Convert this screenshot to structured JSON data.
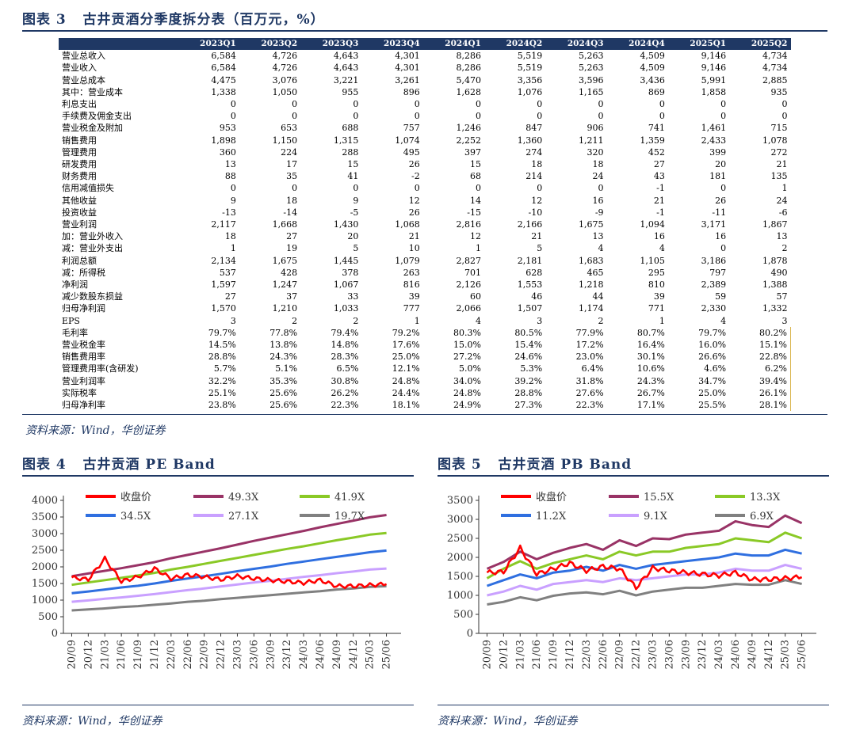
{
  "table_fig": {
    "label": "图表 3",
    "title": "古井贡酒分季度拆分表（百万元，%）",
    "columns": [
      "2023Q1",
      "2023Q2",
      "2023Q3",
      "2023Q4",
      "2024Q1",
      "2024Q2",
      "2024Q3",
      "2024Q4",
      "2025Q1",
      "2025Q2"
    ],
    "rows": [
      {
        "label": "营业总收入",
        "values": [
          "6,584",
          "4,726",
          "4,643",
          "4,301",
          "8,286",
          "5,519",
          "5,263",
          "4,509",
          "9,146",
          "4,734"
        ]
      },
      {
        "label": "营业收入",
        "values": [
          "6,584",
          "4,726",
          "4,643",
          "4,301",
          "8,286",
          "5,519",
          "5,263",
          "4,509",
          "9,146",
          "4,734"
        ]
      },
      {
        "label": "营业总成本",
        "values": [
          "4,475",
          "3,076",
          "3,221",
          "3,261",
          "5,470",
          "3,356",
          "3,596",
          "3,436",
          "5,991",
          "2,885"
        ]
      },
      {
        "label": "其中：营业成本",
        "values": [
          "1,338",
          "1,050",
          "955",
          "896",
          "1,628",
          "1,076",
          "1,165",
          "869",
          "1,858",
          "935"
        ]
      },
      {
        "label": "利息支出",
        "values": [
          "0",
          "0",
          "0",
          "0",
          "0",
          "0",
          "0",
          "0",
          "0",
          "0"
        ]
      },
      {
        "label": "手续费及佣金支出",
        "values": [
          "0",
          "0",
          "0",
          "0",
          "0",
          "0",
          "0",
          "0",
          "0",
          "0"
        ]
      },
      {
        "label": "营业税金及附加",
        "values": [
          "953",
          "653",
          "688",
          "757",
          "1,246",
          "847",
          "906",
          "741",
          "1,461",
          "715"
        ]
      },
      {
        "label": "销售费用",
        "values": [
          "1,898",
          "1,150",
          "1,315",
          "1,074",
          "2,252",
          "1,360",
          "1,211",
          "1,359",
          "2,433",
          "1,078"
        ]
      },
      {
        "label": "管理费用",
        "values": [
          "360",
          "224",
          "288",
          "495",
          "397",
          "274",
          "320",
          "452",
          "399",
          "272"
        ]
      },
      {
        "label": "研发费用",
        "values": [
          "13",
          "17",
          "15",
          "26",
          "15",
          "18",
          "18",
          "27",
          "20",
          "21"
        ]
      },
      {
        "label": "财务费用",
        "values": [
          "88",
          "35",
          "41",
          "-2",
          "68",
          "214",
          "24",
          "43",
          "181",
          "135"
        ]
      },
      {
        "label": "信用减值损失",
        "values": [
          "0",
          "0",
          "0",
          "0",
          "0",
          "0",
          "0",
          "-1",
          "0",
          "1"
        ]
      },
      {
        "label": "其他收益",
        "values": [
          "9",
          "18",
          "9",
          "12",
          "14",
          "12",
          "16",
          "21",
          "26",
          "24"
        ]
      },
      {
        "label": "投资收益",
        "values": [
          "-13",
          "-14",
          "-5",
          "26",
          "-15",
          "-10",
          "-9",
          "-1",
          "-11",
          "-6"
        ]
      },
      {
        "label": "营业利润",
        "values": [
          "2,117",
          "1,668",
          "1,430",
          "1,068",
          "2,816",
          "2,166",
          "1,675",
          "1,094",
          "3,171",
          "1,867"
        ]
      },
      {
        "label": "加：营业外收入",
        "values": [
          "18",
          "27",
          "20",
          "21",
          "12",
          "21",
          "13",
          "16",
          "16",
          "13"
        ]
      },
      {
        "label": "减：营业外支出",
        "values": [
          "1",
          "19",
          "5",
          "10",
          "1",
          "5",
          "4",
          "4",
          "0",
          "2"
        ]
      },
      {
        "label": "利润总额",
        "values": [
          "2,134",
          "1,675",
          "1,445",
          "1,079",
          "2,827",
          "2,181",
          "1,683",
          "1,105",
          "3,186",
          "1,878"
        ]
      },
      {
        "label": "减：所得税",
        "values": [
          "537",
          "428",
          "378",
          "263",
          "701",
          "628",
          "465",
          "295",
          "797",
          "490"
        ]
      },
      {
        "label": "净利润",
        "values": [
          "1,597",
          "1,247",
          "1,067",
          "816",
          "2,126",
          "1,553",
          "1,218",
          "810",
          "2,389",
          "1,388"
        ]
      },
      {
        "label": "减少数股东损益",
        "values": [
          "27",
          "37",
          "33",
          "39",
          "60",
          "46",
          "44",
          "39",
          "59",
          "57"
        ]
      },
      {
        "label": "归母净利润",
        "values": [
          "1,570",
          "1,210",
          "1,033",
          "777",
          "2,066",
          "1,507",
          "1,174",
          "771",
          "2,330",
          "1,332"
        ]
      },
      {
        "label": "EPS",
        "values": [
          "3",
          "2",
          "2",
          "1",
          "4",
          "3",
          "2",
          "1",
          "4",
          "3"
        ]
      },
      {
        "label": "毛利率",
        "values": [
          "79.7%",
          "77.8%",
          "79.4%",
          "79.2%",
          "80.3%",
          "80.5%",
          "77.9%",
          "80.7%",
          "79.7%",
          "80.2%"
        ]
      },
      {
        "label": "营业税金率",
        "values": [
          "14.5%",
          "13.8%",
          "14.8%",
          "17.6%",
          "15.0%",
          "15.4%",
          "17.2%",
          "16.4%",
          "16.0%",
          "15.1%"
        ]
      },
      {
        "label": "销售费用率",
        "values": [
          "28.8%",
          "24.3%",
          "28.3%",
          "25.0%",
          "27.2%",
          "24.6%",
          "23.0%",
          "30.1%",
          "26.6%",
          "22.8%"
        ]
      },
      {
        "label": "管理费用率(含研发)",
        "values": [
          "5.7%",
          "5.1%",
          "6.5%",
          "12.1%",
          "5.0%",
          "5.3%",
          "6.4%",
          "10.6%",
          "4.6%",
          "6.2%"
        ]
      },
      {
        "label": "营业利润率",
        "values": [
          "32.2%",
          "35.3%",
          "30.8%",
          "24.8%",
          "34.0%",
          "39.2%",
          "31.8%",
          "24.3%",
          "34.7%",
          "39.4%"
        ]
      },
      {
        "label": "实际税率",
        "values": [
          "25.1%",
          "25.6%",
          "26.2%",
          "24.4%",
          "24.8%",
          "28.8%",
          "27.6%",
          "26.7%",
          "25.0%",
          "26.1%"
        ]
      },
      {
        "label": "归母净利率",
        "values": [
          "23.8%",
          "25.6%",
          "22.3%",
          "18.1%",
          "24.9%",
          "27.3%",
          "22.3%",
          "17.1%",
          "25.5%",
          "28.1%"
        ]
      }
    ],
    "source": "资料来源：Wind，华创证券"
  },
  "pe_fig": {
    "label": "图表 4",
    "title": "古井贡酒 PE Band",
    "source": "资料来源：Wind，华创证券"
  },
  "pb_fig": {
    "label": "图表 5",
    "title": "古井贡酒 PB Band",
    "source": "资料来源：Wind，华创证券"
  },
  "chart_data": [
    {
      "type": "line",
      "title": "古井贡酒 PE Band",
      "x_ticks": [
        "20/09",
        "20/12",
        "21/03",
        "21/06",
        "21/09",
        "21/12",
        "22/03",
        "22/06",
        "22/09",
        "22/12",
        "23/03",
        "23/06",
        "23/09",
        "23/12",
        "24/03",
        "24/06",
        "24/09",
        "24/12",
        "25/03",
        "25/06"
      ],
      "ylim": [
        0,
        4000
      ],
      "y_ticks": [
        0,
        500,
        1000,
        1500,
        2000,
        2500,
        3000,
        3500,
        4000
      ],
      "legend_position": "top",
      "series": [
        {
          "name": "收盘价",
          "color": "#ff0000",
          "values": [
            1680,
            1620,
            2250,
            1560,
            1700,
            1950,
            1650,
            1760,
            1700,
            1620,
            1720,
            1650,
            1600,
            1560,
            1520,
            1600,
            1420,
            1420,
            1450,
            1480
          ]
        },
        {
          "name": "49.3X",
          "color": "#993366",
          "values": [
            1720,
            1800,
            1880,
            1960,
            2050,
            2140,
            2260,
            2360,
            2460,
            2560,
            2670,
            2780,
            2880,
            2980,
            3080,
            3190,
            3290,
            3390,
            3490,
            3560
          ]
        },
        {
          "name": "41.9X",
          "color": "#8ac926",
          "values": [
            1460,
            1530,
            1600,
            1670,
            1740,
            1820,
            1920,
            2000,
            2090,
            2180,
            2270,
            2360,
            2450,
            2540,
            2620,
            2710,
            2800,
            2880,
            2970,
            3020
          ]
        },
        {
          "name": "34.5X",
          "color": "#2f6fe0",
          "values": [
            1210,
            1260,
            1320,
            1380,
            1430,
            1500,
            1580,
            1650,
            1720,
            1790,
            1870,
            1940,
            2010,
            2090,
            2160,
            2230,
            2300,
            2370,
            2440,
            2490
          ]
        },
        {
          "name": "27.1X",
          "color": "#c9a0ff",
          "values": [
            950,
            990,
            1040,
            1080,
            1130,
            1180,
            1240,
            1300,
            1350,
            1410,
            1470,
            1530,
            1580,
            1640,
            1700,
            1750,
            1810,
            1860,
            1920,
            1950
          ]
        },
        {
          "name": "19.7X",
          "color": "#808080",
          "values": [
            690,
            720,
            750,
            790,
            820,
            860,
            900,
            950,
            980,
            1030,
            1070,
            1110,
            1150,
            1190,
            1230,
            1270,
            1320,
            1350,
            1400,
            1420
          ]
        }
      ]
    },
    {
      "type": "line",
      "title": "古井贡酒 PB Band",
      "x_ticks": [
        "20/09",
        "20/12",
        "21/03",
        "21/06",
        "21/09",
        "21/12",
        "22/03",
        "22/06",
        "22/09",
        "22/12",
        "23/03",
        "23/06",
        "23/09",
        "23/12",
        "24/03",
        "24/06",
        "24/09",
        "24/12",
        "25/03",
        "25/06"
      ],
      "ylim": [
        0,
        3500
      ],
      "y_ticks": [
        0,
        500,
        1000,
        1500,
        2000,
        2500,
        3000,
        3500
      ],
      "legend_position": "top",
      "series": [
        {
          "name": "收盘价",
          "color": "#ff0000",
          "values": [
            1600,
            1620,
            2250,
            1560,
            1700,
            1850,
            1650,
            1760,
            1700,
            1200,
            1720,
            1650,
            1600,
            1560,
            1520,
            1600,
            1420,
            1420,
            1450,
            1480
          ]
        },
        {
          "name": "15.5X",
          "color": "#993366",
          "values": [
            1700,
            1880,
            2150,
            1950,
            2120,
            2250,
            2350,
            2200,
            2450,
            2300,
            2500,
            2480,
            2600,
            2650,
            2700,
            2950,
            2850,
            2800,
            3100,
            2900
          ]
        },
        {
          "name": "13.3X",
          "color": "#8ac926",
          "values": [
            1450,
            1700,
            1900,
            1700,
            1850,
            1950,
            2050,
            1950,
            2150,
            2050,
            2150,
            2150,
            2250,
            2300,
            2350,
            2500,
            2450,
            2400,
            2650,
            2500
          ]
        },
        {
          "name": "11.2X",
          "color": "#2f6fe0",
          "values": [
            1250,
            1400,
            1550,
            1450,
            1600,
            1650,
            1750,
            1650,
            1800,
            1700,
            1800,
            1850,
            1900,
            1950,
            2000,
            2100,
            2050,
            2050,
            2200,
            2100
          ]
        },
        {
          "name": "9.1X",
          "color": "#c9a0ff",
          "values": [
            1000,
            1100,
            1250,
            1150,
            1300,
            1350,
            1400,
            1350,
            1450,
            1400,
            1450,
            1500,
            1550,
            1550,
            1600,
            1700,
            1650,
            1650,
            1800,
            1700
          ]
        },
        {
          "name": "6.9X",
          "color": "#808080",
          "values": [
            760,
            830,
            950,
            870,
            990,
            1050,
            1080,
            1030,
            1120,
            1000,
            1100,
            1150,
            1200,
            1200,
            1250,
            1300,
            1280,
            1280,
            1400,
            1300
          ]
        }
      ]
    }
  ]
}
